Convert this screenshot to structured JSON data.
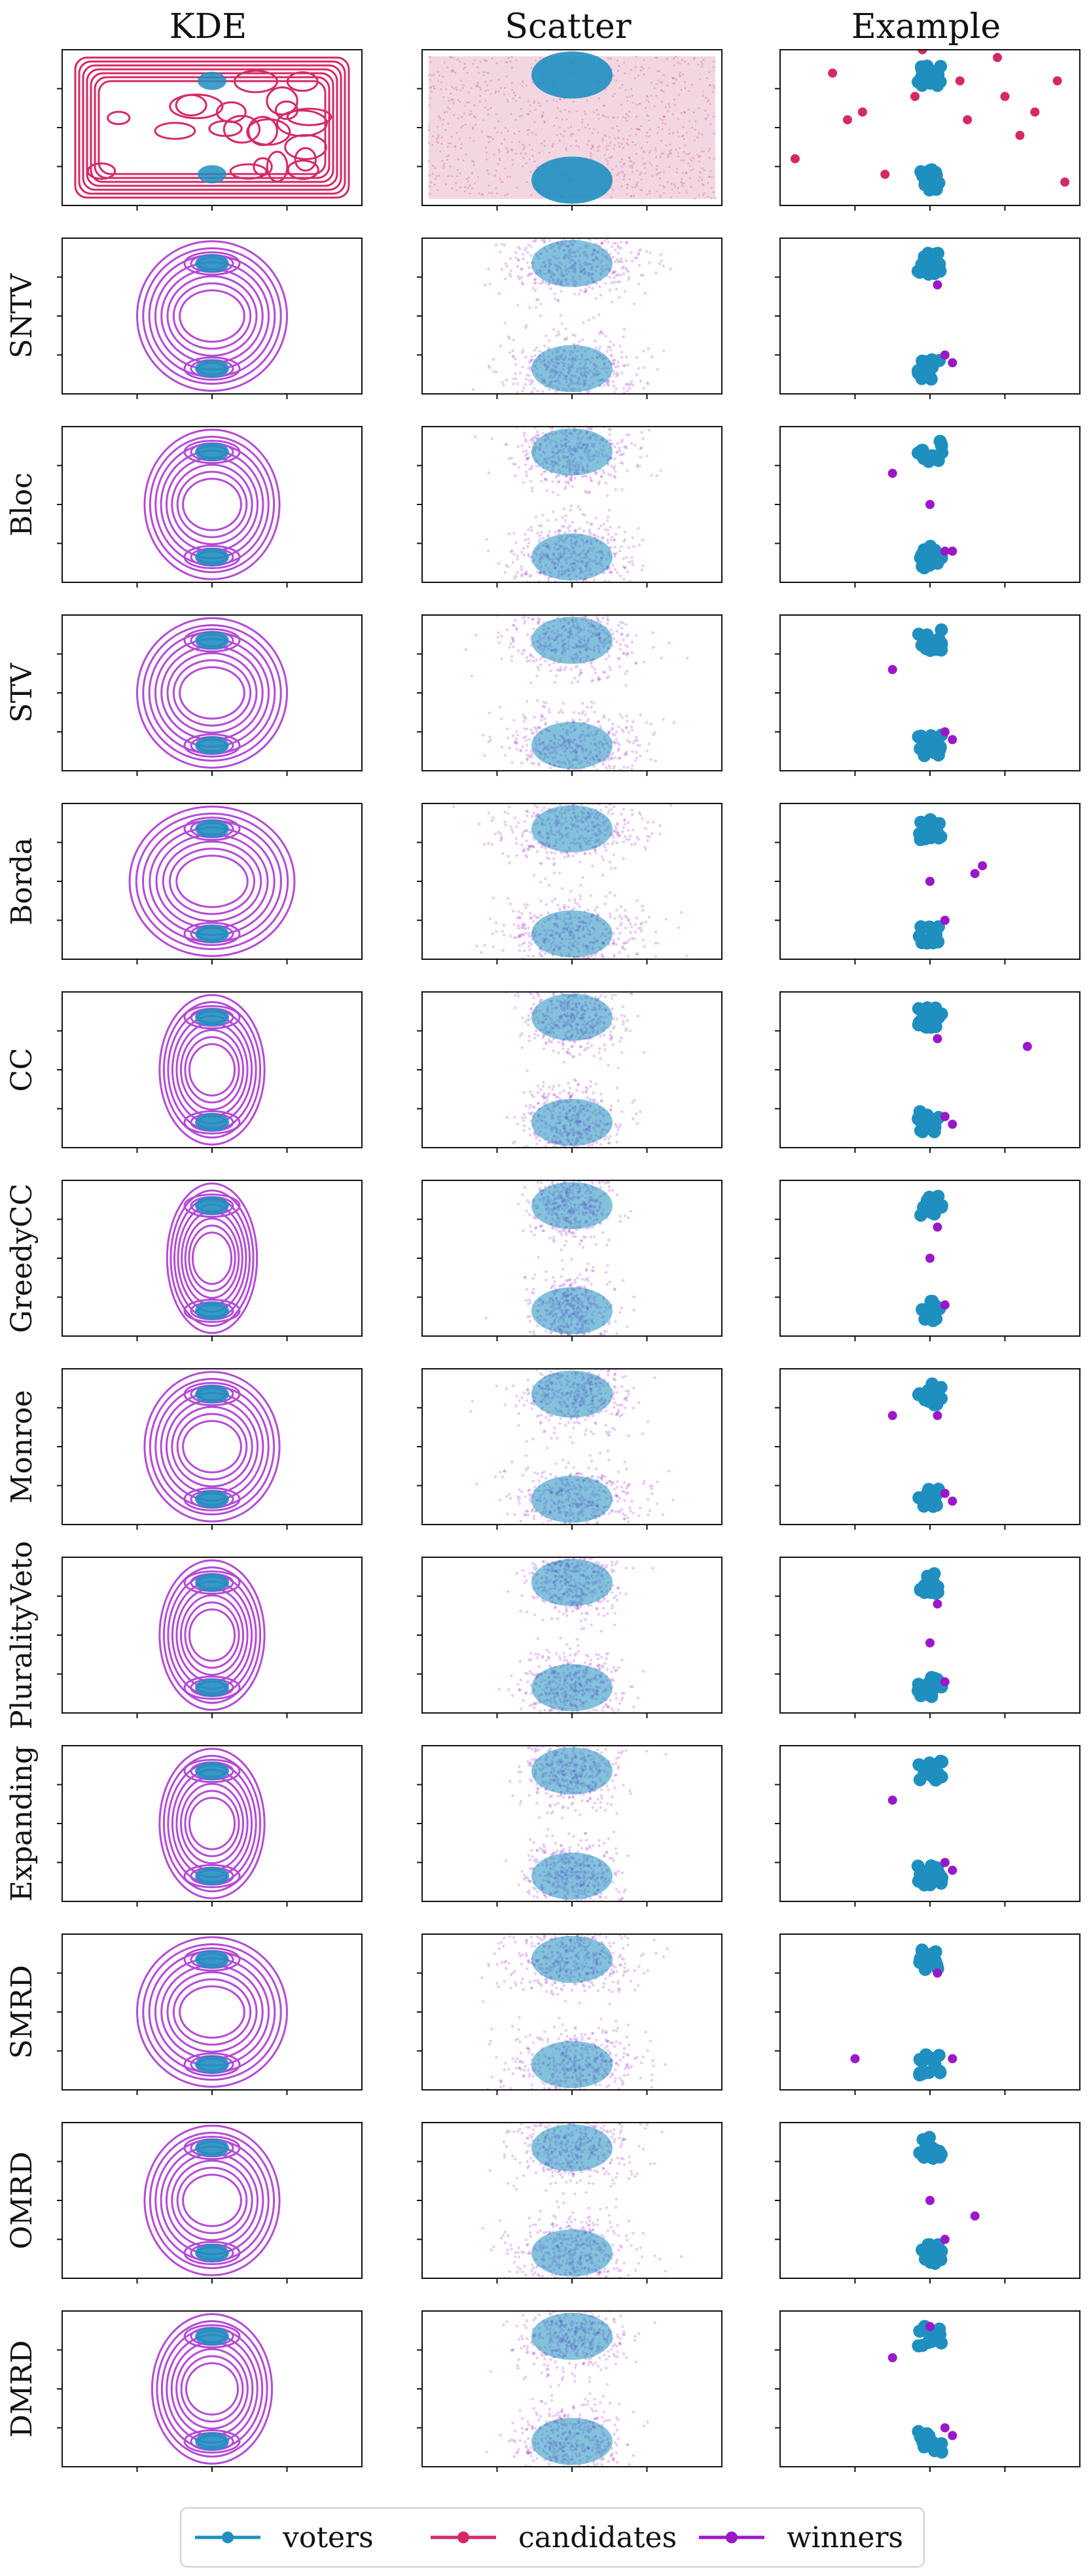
{
  "colors": {
    "voters": "#1f8fc0",
    "candidates": "#d42a63",
    "winners": "#9b18c9",
    "kde": "#b44bd6",
    "scatter_bg": "#f2d7e3"
  },
  "chart_data": {
    "type": "scatter",
    "column_titles": [
      "KDE",
      "Scatter",
      "Example"
    ],
    "row_labels": [
      "",
      "SNTV",
      "Bloc",
      "STV",
      "Borda",
      "CC",
      "GreedyCC",
      "Monroe",
      "PluralityVeto",
      "Expanding",
      "SMRD",
      "OMRD",
      "DMRD"
    ],
    "legend": {
      "placement": "bottom-center",
      "entries": [
        "voters",
        "candidates",
        "winners"
      ]
    },
    "voter_clusters": [
      [
        0.0,
        0.25
      ],
      [
        0.0,
        -0.25
      ]
    ],
    "candidates_example": [
      [
        -0.9,
        -0.2
      ],
      [
        -0.65,
        0.35
      ],
      [
        -0.55,
        0.05
      ],
      [
        -0.45,
        0.1
      ],
      [
        -0.3,
        -0.3
      ],
      [
        -0.25,
        0.55
      ],
      [
        -0.1,
        0.2
      ],
      [
        0.25,
        0.05
      ],
      [
        0.45,
        0.45
      ],
      [
        0.5,
        0.2
      ],
      [
        0.6,
        -0.05
      ],
      [
        0.7,
        0.1
      ],
      [
        0.85,
        0.3
      ],
      [
        0.9,
        -0.35
      ],
      [
        -0.05,
        0.5
      ],
      [
        0.2,
        0.3
      ]
    ],
    "winners_example": [
      [
        [
          0.05,
          0.2
        ],
        [
          0.1,
          -0.25
        ],
        [
          0.15,
          -0.3
        ]
      ],
      [
        [
          -0.25,
          0.2
        ],
        [
          0.0,
          0.0
        ],
        [
          0.1,
          -0.3
        ],
        [
          0.15,
          -0.3
        ]
      ],
      [
        [
          -0.25,
          0.15
        ],
        [
          0.1,
          -0.25
        ],
        [
          0.15,
          -0.3
        ]
      ],
      [
        [
          0.0,
          0.0
        ],
        [
          0.3,
          0.05
        ],
        [
          0.35,
          0.1
        ],
        [
          0.1,
          -0.25
        ]
      ],
      [
        [
          0.05,
          0.2
        ],
        [
          0.1,
          -0.3
        ],
        [
          0.15,
          -0.35
        ],
        [
          0.65,
          0.15
        ]
      ],
      [
        [
          0.05,
          0.2
        ],
        [
          0.0,
          0.0
        ],
        [
          0.1,
          -0.3
        ]
      ],
      [
        [
          -0.25,
          0.2
        ],
        [
          0.05,
          0.2
        ],
        [
          0.1,
          -0.3
        ],
        [
          0.15,
          -0.35
        ]
      ],
      [
        [
          0.05,
          0.2
        ],
        [
          0.0,
          -0.05
        ],
        [
          0.1,
          -0.3
        ]
      ],
      [
        [
          -0.25,
          0.15
        ],
        [
          0.1,
          -0.25
        ],
        [
          0.15,
          -0.3
        ]
      ],
      [
        [
          0.05,
          0.25
        ],
        [
          -0.5,
          -0.3
        ],
        [
          0.15,
          -0.3
        ]
      ],
      [
        [
          0.0,
          0.0
        ],
        [
          0.3,
          -0.1
        ],
        [
          0.1,
          -0.25
        ]
      ],
      [
        [
          0.0,
          0.4
        ],
        [
          -0.25,
          0.2
        ],
        [
          0.1,
          -0.25
        ],
        [
          0.15,
          -0.3
        ]
      ]
    ],
    "kde_widths": [
      0,
      0.5,
      0.45,
      0.5,
      0.55,
      0.35,
      0.3,
      0.45,
      0.35,
      0.35,
      0.5,
      0.45,
      0.4
    ],
    "xlim": [
      -1,
      1
    ],
    "ylim": [
      -0.5,
      0.5
    ]
  }
}
